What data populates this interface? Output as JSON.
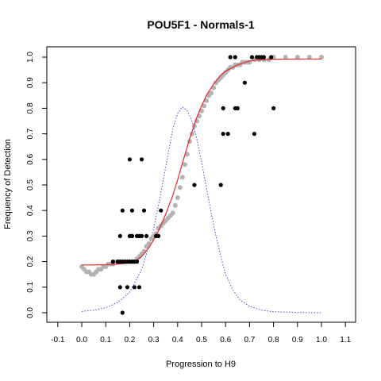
{
  "chart_data": {
    "type": "scatter",
    "title": "POU5F1 - Normals-1",
    "xlabel": "Progression to H9",
    "ylabel": "Frequency of Detection",
    "xlim": [
      -0.1,
      1.1
    ],
    "ylim": [
      0.0,
      1.0
    ],
    "x_ticks": [
      "-0.1",
      "0.0",
      "0.1",
      "0.2",
      "0.3",
      "0.4",
      "0.5",
      "0.6",
      "0.7",
      "0.8",
      "0.9",
      "1.0",
      "1.1"
    ],
    "y_ticks": [
      "0.0",
      "0.1",
      "0.2",
      "0.3",
      "0.4",
      "0.5",
      "0.6",
      "0.7",
      "0.8",
      "0.9",
      "1.0"
    ],
    "grid": false,
    "legend": "none",
    "colors": {
      "points": "#000000",
      "smooth_points": "#b3b3b3",
      "fit_line": "#e8272b",
      "density": "#4a4ae0"
    },
    "series": [
      {
        "kind": "points",
        "x": [
          0.17,
          0.13,
          0.15,
          0.16,
          0.17,
          0.18,
          0.19,
          0.2,
          0.21,
          0.22,
          0.23,
          0.2,
          0.21,
          0.23,
          0.25,
          0.27,
          0.31,
          0.32,
          0.16,
          0.19,
          0.22,
          0.24,
          0.17,
          0.21,
          0.26,
          0.33,
          0.2,
          0.25,
          0.16,
          0.21,
          0.24,
          0.47,
          0.58,
          0.59,
          0.61,
          0.72,
          0.59,
          0.64,
          0.65,
          0.8,
          0.68,
          0.62,
          0.64,
          0.71,
          0.73,
          0.74,
          0.75,
          0.76,
          0.79
        ],
        "y": [
          0.0,
          0.2,
          0.2,
          0.2,
          0.2,
          0.2,
          0.2,
          0.2,
          0.2,
          0.2,
          0.2,
          0.3,
          0.3,
          0.3,
          0.3,
          0.3,
          0.3,
          0.3,
          0.1,
          0.1,
          0.1,
          0.1,
          0.4,
          0.4,
          0.4,
          0.4,
          0.6,
          0.6,
          0.3,
          0.3,
          0.3,
          0.5,
          0.5,
          0.7,
          0.7,
          0.7,
          0.8,
          0.8,
          0.8,
          0.8,
          0.9,
          1.0,
          1.0,
          1.0,
          1.0,
          1.0,
          1.0,
          1.0,
          1.0
        ]
      },
      {
        "kind": "smoothed_points",
        "x": [
          0.0,
          0.01,
          0.02,
          0.03,
          0.04,
          0.05,
          0.06,
          0.07,
          0.08,
          0.09,
          0.1,
          0.11,
          0.12,
          0.13,
          0.14,
          0.15,
          0.16,
          0.17,
          0.18,
          0.19,
          0.2,
          0.21,
          0.22,
          0.23,
          0.24,
          0.25,
          0.26,
          0.27,
          0.28,
          0.29,
          0.3,
          0.31,
          0.32,
          0.33,
          0.34,
          0.35,
          0.36,
          0.37,
          0.38,
          0.39,
          0.4,
          0.41,
          0.42,
          0.43,
          0.44,
          0.45,
          0.46,
          0.47,
          0.48,
          0.49,
          0.5,
          0.51,
          0.52,
          0.53,
          0.54,
          0.55,
          0.56,
          0.57,
          0.58,
          0.59,
          0.6,
          0.61,
          0.62,
          0.63,
          0.64,
          0.65,
          0.66,
          0.67,
          0.68,
          0.69,
          0.7,
          0.72,
          0.74,
          0.76,
          0.78,
          0.8,
          0.85,
          0.9,
          0.95,
          1.0
        ],
        "y": [
          0.18,
          0.17,
          0.16,
          0.16,
          0.15,
          0.15,
          0.16,
          0.17,
          0.17,
          0.18,
          0.18,
          0.19,
          0.19,
          0.19,
          0.2,
          0.2,
          0.2,
          0.2,
          0.2,
          0.2,
          0.2,
          0.2,
          0.2,
          0.21,
          0.22,
          0.23,
          0.24,
          0.26,
          0.27,
          0.29,
          0.3,
          0.31,
          0.33,
          0.34,
          0.35,
          0.36,
          0.37,
          0.38,
          0.39,
          0.42,
          0.45,
          0.49,
          0.53,
          0.58,
          0.62,
          0.67,
          0.7,
          0.73,
          0.75,
          0.77,
          0.79,
          0.81,
          0.83,
          0.85,
          0.86,
          0.88,
          0.9,
          0.91,
          0.92,
          0.93,
          0.94,
          0.95,
          0.96,
          0.96,
          0.97,
          0.97,
          0.97,
          0.98,
          0.98,
          0.98,
          0.98,
          0.99,
          0.99,
          0.99,
          0.99,
          1.0,
          1.0,
          1.0,
          1.0,
          1.0
        ]
      },
      {
        "kind": "fit_line",
        "x": [
          0.0,
          0.05,
          0.1,
          0.15,
          0.2,
          0.22,
          0.25,
          0.28,
          0.3,
          0.32,
          0.35,
          0.38,
          0.4,
          0.42,
          0.45,
          0.48,
          0.5,
          0.52,
          0.55,
          0.58,
          0.6,
          0.65,
          0.7,
          0.75,
          0.8,
          0.9,
          1.0
        ],
        "y": [
          0.187,
          0.187,
          0.188,
          0.19,
          0.195,
          0.2,
          0.22,
          0.255,
          0.285,
          0.32,
          0.385,
          0.46,
          0.52,
          0.585,
          0.68,
          0.765,
          0.81,
          0.85,
          0.895,
          0.93,
          0.945,
          0.97,
          0.985,
          0.99,
          0.992,
          0.993,
          0.993
        ]
      },
      {
        "kind": "density",
        "x": [
          0.0,
          0.05,
          0.1,
          0.15,
          0.2,
          0.25,
          0.28,
          0.3,
          0.32,
          0.34,
          0.36,
          0.38,
          0.4,
          0.42,
          0.44,
          0.46,
          0.48,
          0.5,
          0.52,
          0.54,
          0.56,
          0.58,
          0.6,
          0.63,
          0.66,
          0.7,
          0.75,
          0.8,
          0.9,
          1.0
        ],
        "y": [
          0.005,
          0.01,
          0.02,
          0.04,
          0.08,
          0.17,
          0.26,
          0.33,
          0.42,
          0.52,
          0.62,
          0.72,
          0.78,
          0.805,
          0.79,
          0.75,
          0.68,
          0.59,
          0.49,
          0.39,
          0.3,
          0.22,
          0.15,
          0.09,
          0.05,
          0.025,
          0.01,
          0.004,
          0.001,
          0.0
        ]
      }
    ]
  }
}
